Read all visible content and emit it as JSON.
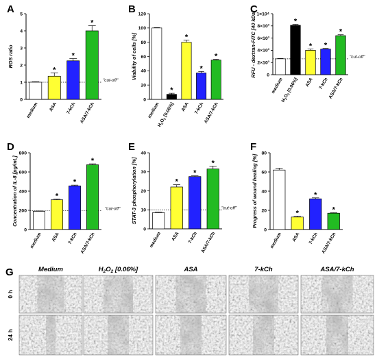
{
  "chart_data": [
    {
      "panel": "A",
      "type": "bar",
      "ylabel": "ROS ratio",
      "categories": [
        "medium",
        "ASA",
        "7-kCh",
        "ASA/7-kCh"
      ],
      "values": [
        1.0,
        1.35,
        2.25,
        4.0
      ],
      "errors": [
        0.03,
        0.2,
        0.13,
        0.3
      ],
      "stars": [
        "",
        "*",
        "*",
        "*"
      ],
      "colors": [
        "#ffffff",
        "#ffff33",
        "#2222ff",
        "#22bb22"
      ],
      "ylim": [
        0,
        5
      ],
      "yticks": [
        0,
        1,
        2,
        3,
        4,
        5
      ],
      "cutoff": 1.0,
      "cutoff_label": "\"cut-off\""
    },
    {
      "panel": "B",
      "type": "bar",
      "ylabel": "Viability of cells [%]",
      "categories": [
        "medium",
        "H2O2 [0.06%]",
        "ASA",
        "7-kCh",
        "ASA/7-kCh"
      ],
      "values": [
        100,
        7,
        80,
        37,
        55
      ],
      "errors": [
        0.5,
        1.5,
        3,
        2,
        1
      ],
      "stars": [
        "",
        "*",
        "*",
        "*",
        "*"
      ],
      "colors": [
        "#ffffff",
        "#000000",
        "#ffff33",
        "#2222ff",
        "#22bb22"
      ],
      "ylim": [
        0,
        120
      ],
      "yticks": [
        0,
        20,
        40,
        60,
        80,
        100,
        120
      ]
    },
    {
      "panel": "C",
      "type": "bar",
      "ylabel": "RFU - dextran-FITC [40 kDa]",
      "categories": [
        "medium",
        "H2O2 [0.06%]",
        "ASA",
        "7-kCh",
        "ASA/7-kCh"
      ],
      "values": [
        2600,
        8100,
        4000,
        4200,
        6400
      ],
      "errors": [
        50,
        150,
        200,
        100,
        150
      ],
      "stars": [
        "",
        "*",
        "*",
        "*",
        "*"
      ],
      "colors": [
        "#ffffff",
        "#000000",
        "#ffff33",
        "#2222ff",
        "#22bb22"
      ],
      "ylim": [
        0,
        10000
      ],
      "yticks": [
        0,
        2000,
        4000,
        6000,
        8000,
        10000
      ],
      "ytick_labels": [
        "0",
        "2×10³",
        "4×10³",
        "6×10³",
        "8×10³",
        "1×10⁴"
      ],
      "cutoff": 2600,
      "cutoff_label": "\"cut-off\""
    },
    {
      "panel": "D",
      "type": "bar",
      "ylabel": "Concentration of IL-8 [pg/mL]",
      "categories": [
        "medium",
        "ASA",
        "7-kCh",
        "ASA/7-kCh"
      ],
      "values": [
        190,
        310,
        455,
        675
      ],
      "errors": [
        3,
        8,
        8,
        10
      ],
      "stars": [
        "",
        "*",
        "*",
        "*"
      ],
      "colors": [
        "#ffffff",
        "#ffff33",
        "#2222ff",
        "#22bb22"
      ],
      "ylim": [
        0,
        800
      ],
      "yticks": [
        0,
        200,
        400,
        600,
        800
      ],
      "cutoff": 195,
      "cutoff_label": "\"cut-off\""
    },
    {
      "panel": "E",
      "type": "bar",
      "ylabel": "STAT-3 phosphorylation [%]",
      "categories": [
        "medium",
        "ASA",
        "7-kCh",
        "ASA/7-kCh"
      ],
      "values": [
        8.5,
        22,
        27.5,
        31.5
      ],
      "errors": [
        0.3,
        1.2,
        0.4,
        1.5
      ],
      "stars": [
        "",
        "*",
        "*",
        "*"
      ],
      "colors": [
        "#ffffff",
        "#ffff33",
        "#2222ff",
        "#22bb22"
      ],
      "ylim": [
        0,
        40
      ],
      "yticks": [
        0,
        10,
        20,
        30,
        40
      ],
      "cutoff": 10,
      "cutoff_label": "\"cut-off\""
    },
    {
      "panel": "F",
      "type": "bar",
      "ylabel": "Progress of wound healing [%]",
      "categories": [
        "medium",
        "ASA",
        "7-kCh",
        "ASA/7-kCh"
      ],
      "values": [
        62,
        13,
        32,
        17
      ],
      "errors": [
        2,
        1,
        1,
        0.5
      ],
      "stars": [
        "",
        "*",
        "*",
        "*"
      ],
      "colors": [
        "#ffffff",
        "#ffff33",
        "#2222ff",
        "#22bb22"
      ],
      "ylim": [
        0,
        80
      ],
      "yticks": [
        0,
        20,
        40,
        60,
        80
      ]
    }
  ],
  "micrographs": {
    "panel": "G",
    "columns": [
      "Medium",
      "H2O2 [0.06%]",
      "ASA",
      "7-kCh",
      "ASA/7-kCh"
    ],
    "rows": [
      "0 h",
      "24 h"
    ]
  }
}
